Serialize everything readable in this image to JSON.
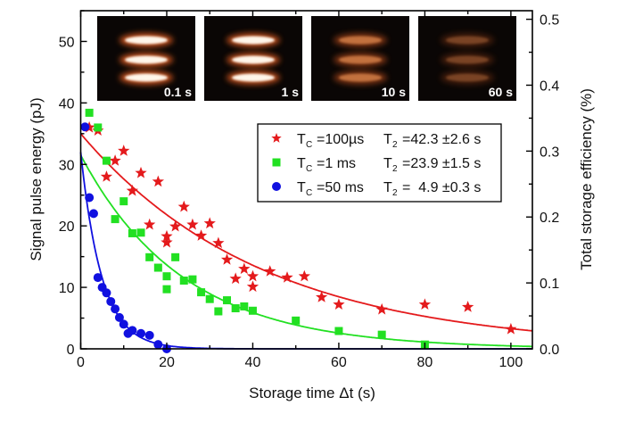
{
  "chart_data": {
    "type": "scatter",
    "xlabel": "Storage time Δt (s)",
    "ylabel": "Signal pulse energy (pJ)",
    "y2label": "Total storage efficiency (%)",
    "xlim": [
      0,
      105
    ],
    "ylim": [
      0,
      55
    ],
    "y2lim": [
      0,
      0.513
    ],
    "xticks": [
      "0",
      "20",
      "40",
      "60",
      "80",
      "100"
    ],
    "yticks": [
      "0",
      "10",
      "20",
      "30",
      "40",
      "50"
    ],
    "y2ticks": [
      "0.0",
      "0.1",
      "0.2",
      "0.3",
      "0.4",
      "0.5"
    ],
    "grid": false,
    "legend_placement": "upper-right",
    "series": [
      {
        "name": "T_C = 100 µs",
        "legend_tc_main": "T",
        "legend_tc_sub": "C",
        "legend_tc_value": "=100µs",
        "legend_t2_main": "T",
        "legend_t2_sub": "2",
        "legend_t2_value": "=42.3 ±2.6 s",
        "marker": "star",
        "color": "#e41a1c",
        "fit": {
          "amplitude": 35,
          "T2": 42.3
        },
        "x": [
          2,
          4,
          6,
          8,
          10,
          12,
          14,
          16,
          18,
          20,
          20,
          22,
          24,
          26,
          28,
          30,
          32,
          34,
          36,
          38,
          40,
          40,
          44,
          48,
          52,
          56,
          60,
          70,
          80,
          90,
          100
        ],
        "y": [
          36,
          35.5,
          28,
          30.6,
          32.2,
          25.7,
          28.6,
          20.2,
          27.2,
          18.3,
          17.3,
          19.9,
          23.1,
          20.2,
          18.4,
          20.4,
          17.2,
          14.5,
          11.4,
          13,
          11.8,
          10.1,
          12.6,
          11.6,
          11.8,
          8.4,
          7.2,
          6.4,
          7.2,
          6.8,
          3.2
        ]
      },
      {
        "name": "T_C = 1 ms",
        "legend_tc_main": "T",
        "legend_tc_sub": "C",
        "legend_tc_value": "=1 ms",
        "legend_t2_main": "T",
        "legend_t2_sub": "2",
        "legend_t2_value": "=23.9 ±1.5 s",
        "marker": "square",
        "color": "#22e022",
        "fit": {
          "amplitude": 31.5,
          "T2": 23.9
        },
        "x": [
          2,
          4,
          6,
          8,
          10,
          12,
          14,
          16,
          18,
          20,
          20,
          22,
          24,
          26,
          28,
          30,
          32,
          34,
          36,
          38,
          40,
          50,
          60,
          70,
          80
        ],
        "y": [
          38.4,
          36,
          30.6,
          21.1,
          24,
          18.8,
          18.9,
          14.9,
          13.2,
          11.8,
          9.7,
          14.9,
          11.1,
          11.3,
          9.2,
          8.1,
          6.1,
          7.9,
          6.6,
          6.9,
          6.2,
          4.6,
          2.9,
          2.3,
          0.7
        ]
      },
      {
        "name": "T_C = 50 ms",
        "legend_tc_main": "T",
        "legend_tc_sub": "C",
        "legend_tc_value": "=50 ms",
        "legend_t2_main": "T",
        "legend_t2_sub": "2",
        "legend_t2_value": "=  4.9 ±0.3 s",
        "marker": "circle",
        "color": "#1010e0",
        "fit": {
          "amplitude": 32,
          "T2": 4.9
        },
        "x": [
          1,
          2,
          3,
          4,
          5,
          6,
          7,
          8,
          9,
          10,
          11,
          12,
          14,
          16,
          18,
          20
        ],
        "y": [
          36.1,
          24.6,
          22,
          11.6,
          10,
          9.1,
          7.7,
          6.5,
          5.1,
          4,
          2.5,
          3,
          2.5,
          2.2,
          0.7,
          0
        ]
      }
    ],
    "insets": [
      {
        "label": "0.1 s",
        "intensity": 1.0
      },
      {
        "label": "1 s",
        "intensity": 0.95
      },
      {
        "label": "10 s",
        "intensity": 0.6
      },
      {
        "label": "60 s",
        "intensity": 0.3
      }
    ]
  }
}
